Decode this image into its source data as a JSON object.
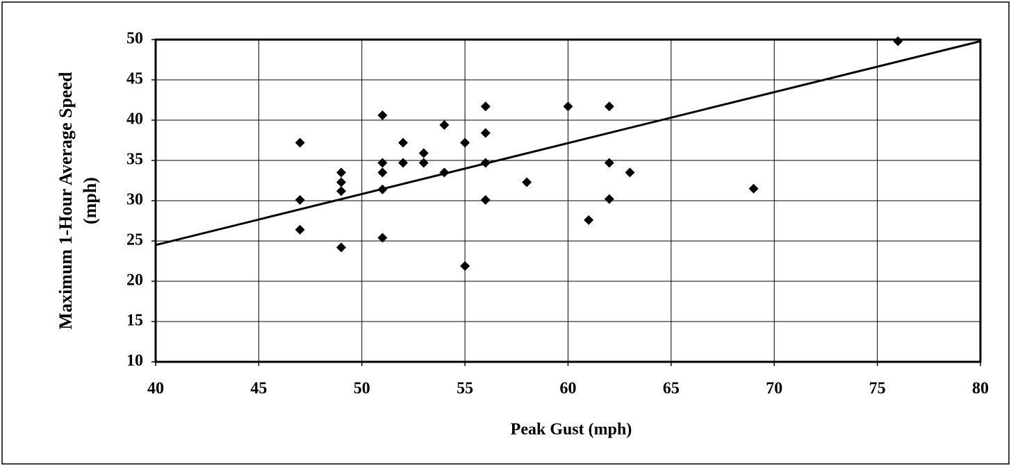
{
  "chart_data": {
    "type": "scatter",
    "xlabel": "Peak Gust (mph)",
    "ylabel": [
      "Maximum 1-Hour Average Speed",
      "(mph)"
    ],
    "xlim": [
      40,
      80
    ],
    "xticks": [
      40,
      45,
      50,
      55,
      60,
      65,
      70,
      75,
      80
    ],
    "ylim": [
      10,
      50
    ],
    "yticks": [
      10,
      15,
      20,
      25,
      30,
      35,
      40,
      45,
      50
    ],
    "grid": true,
    "color": "#000000",
    "x": [
      76,
      47,
      47,
      47,
      49,
      49,
      49,
      49,
      51,
      51,
      51,
      51,
      51,
      52,
      52,
      53,
      53,
      54,
      54,
      55,
      55,
      56,
      56,
      56,
      56,
      58,
      60,
      61,
      62,
      62,
      62,
      63,
      69
    ],
    "values": [
      49.8,
      37.2,
      30.1,
      26.4,
      33.5,
      32.3,
      31.2,
      24.2,
      40.6,
      34.7,
      33.5,
      31.4,
      25.4,
      37.2,
      34.7,
      35.9,
      34.7,
      39.4,
      33.5,
      37.2,
      21.9,
      41.7,
      38.4,
      34.7,
      30.1,
      32.3,
      41.7,
      27.6,
      41.7,
      34.7,
      30.2,
      33.5,
      31.5
    ],
    "trendline": {
      "x": [
        40,
        80
      ],
      "values": [
        24.5,
        49.8
      ]
    }
  }
}
